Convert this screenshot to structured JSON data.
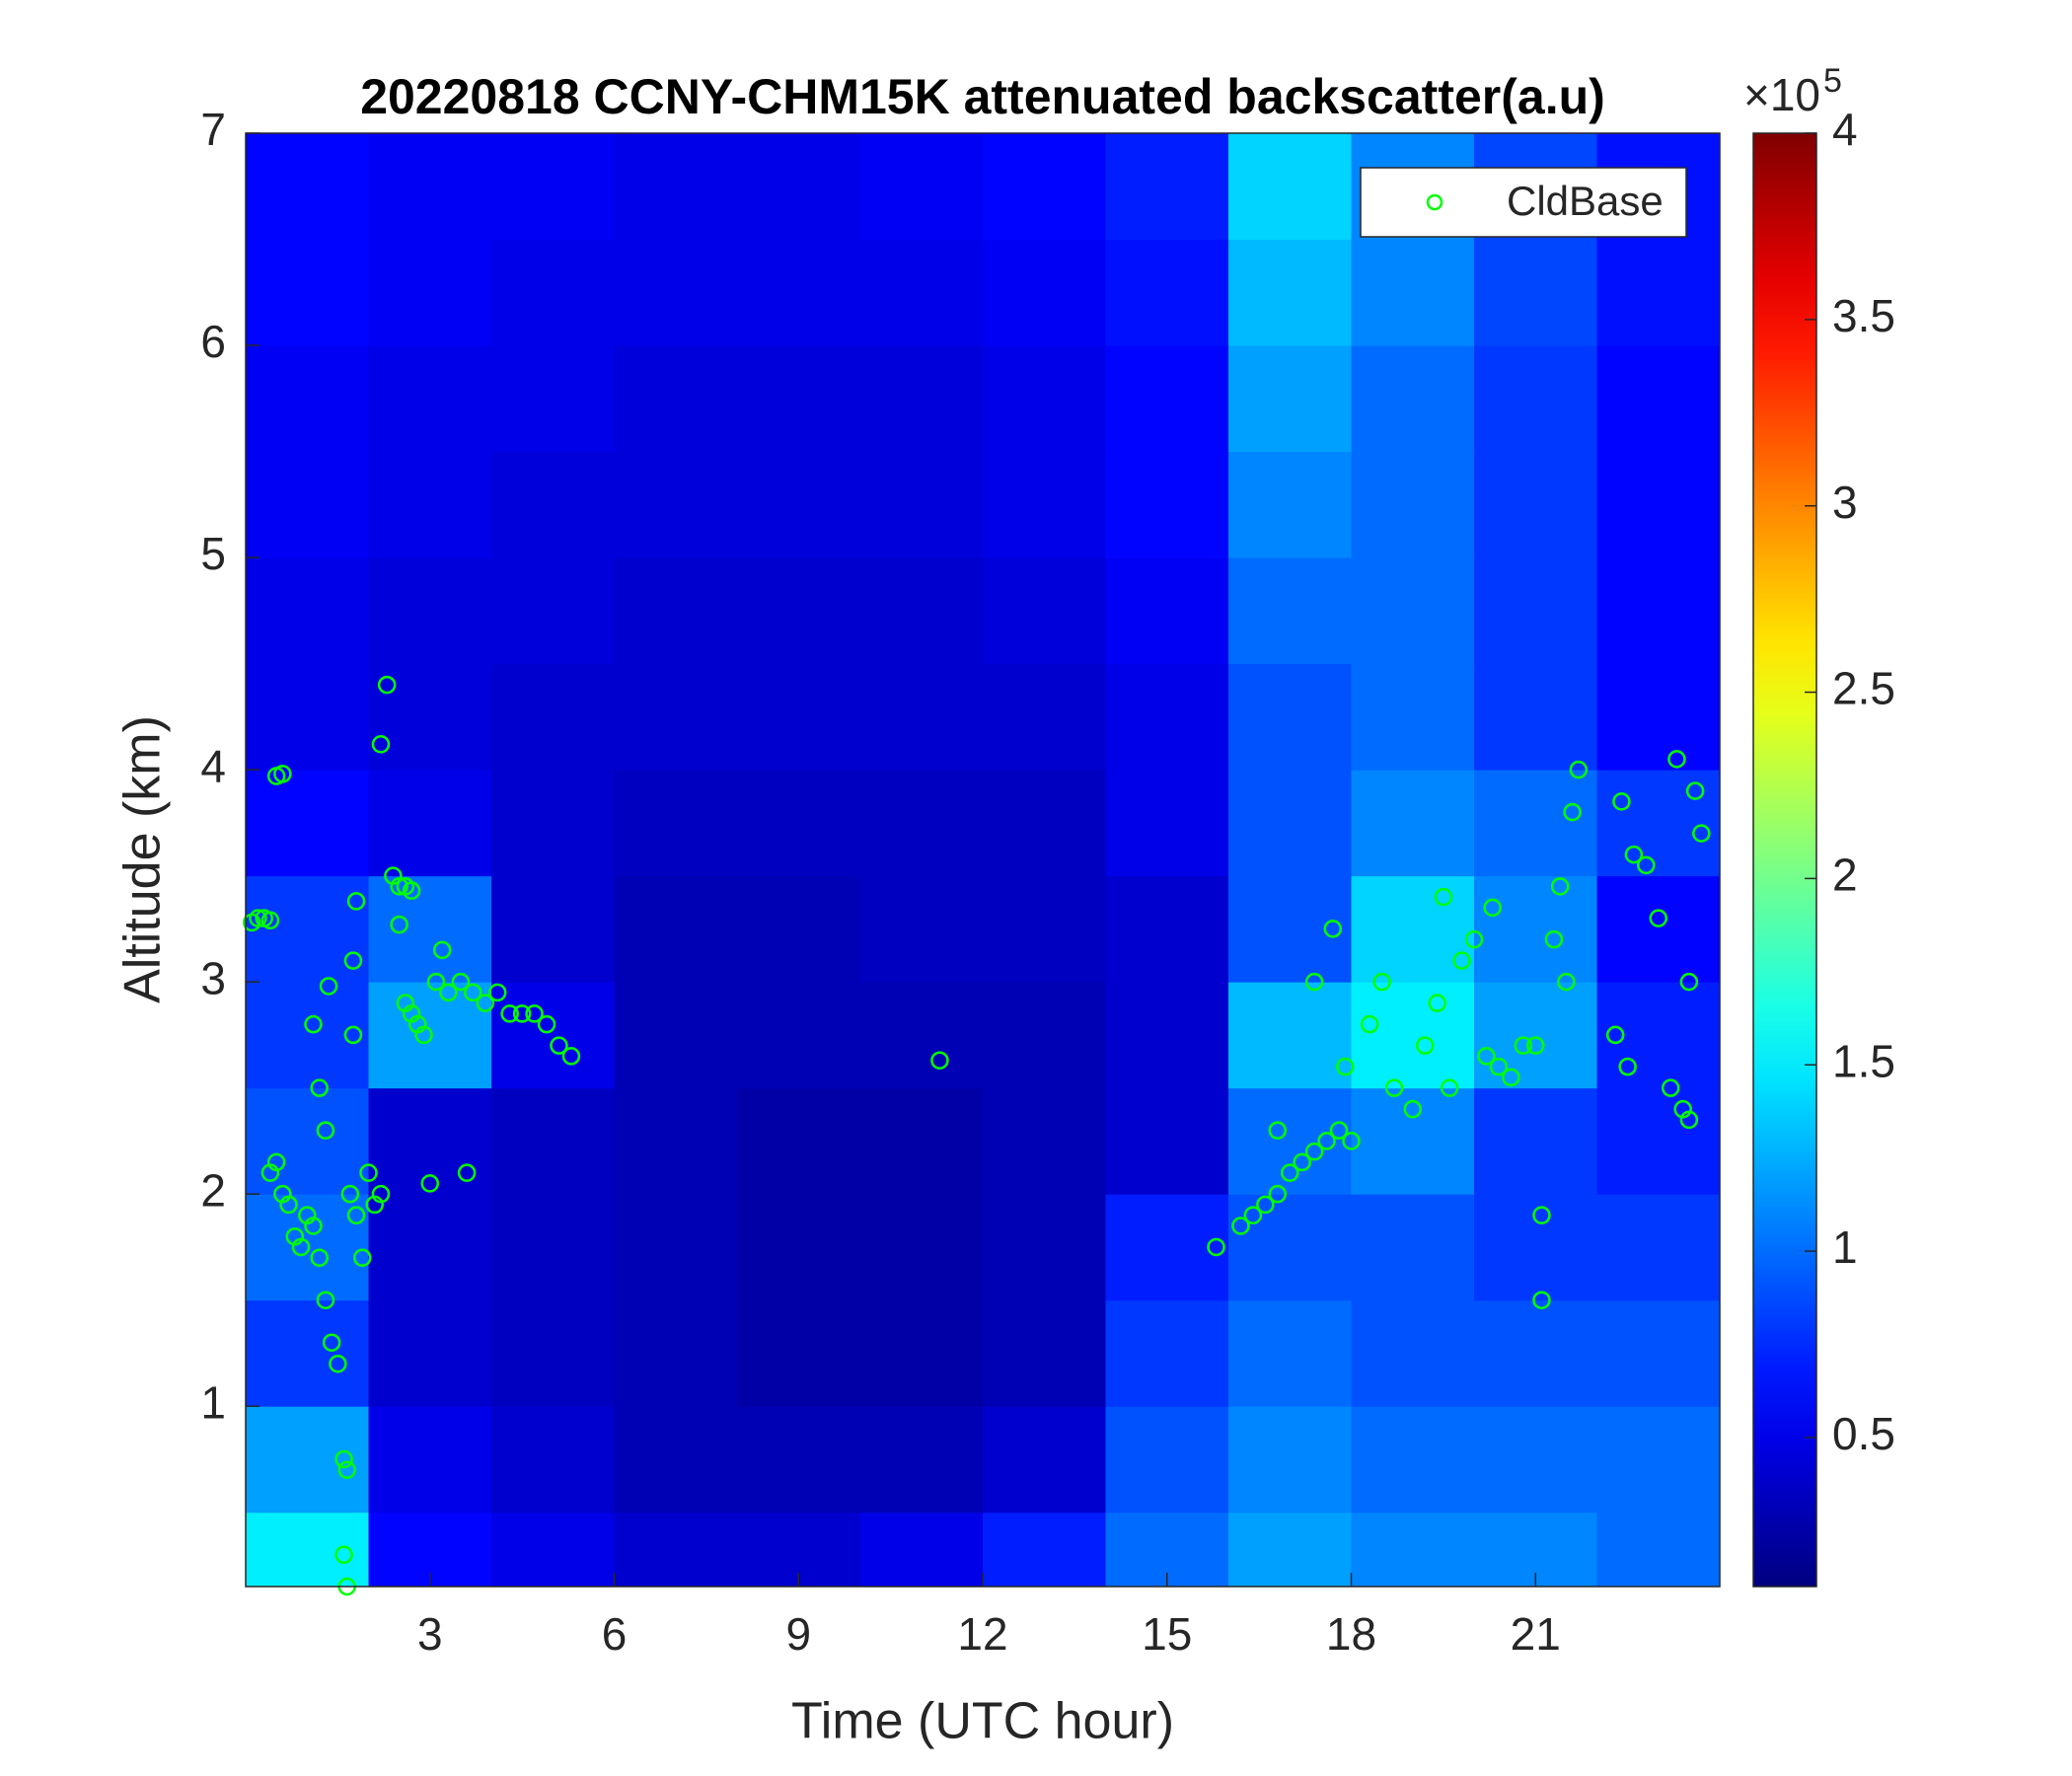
{
  "chart_data": {
    "type": "heatmap",
    "title": "20220818 CCNY-CHM15K attenuated backscatter(a.u)",
    "xlabel": "Time (UTC hour)",
    "ylabel": "Altitude (km)",
    "colormap": "jet",
    "xlim": [
      0,
      24
    ],
    "ylim": [
      0.15,
      7
    ],
    "xticks": [
      3,
      6,
      9,
      12,
      15,
      18,
      21
    ],
    "yticks": [
      1,
      2,
      3,
      4,
      5,
      6,
      7
    ],
    "clim": [
      10000,
      400000
    ],
    "cticks": [
      {
        "value": 50000,
        "label": "0.5"
      },
      {
        "value": 100000,
        "label": "1"
      },
      {
        "value": 150000,
        "label": "1.5"
      },
      {
        "value": 200000,
        "label": "2"
      },
      {
        "value": 250000,
        "label": "2.5"
      },
      {
        "value": 300000,
        "label": "3"
      },
      {
        "value": 350000,
        "label": "3.5"
      },
      {
        "value": 400000,
        "label": "4"
      }
    ],
    "colorbar_exponent": {
      "base": "×10",
      "power": "5"
    },
    "legend": "northeast",
    "xbins": [
      0,
      2,
      4,
      6,
      8,
      10,
      12,
      14,
      16,
      18,
      20,
      22,
      24
    ],
    "ybins": [
      0.15,
      0.5,
      1,
      1.5,
      2,
      2.5,
      3,
      3.5,
      4,
      4.5,
      5,
      5.5,
      6,
      6.5,
      7
    ],
    "z": [
      [
        150000,
        60000,
        50000,
        40000,
        40000,
        50000,
        70000,
        100000,
        120000,
        110000,
        110000,
        100000
      ],
      [
        120000,
        50000,
        40000,
        30000,
        30000,
        30000,
        40000,
        90000,
        110000,
        100000,
        100000,
        100000
      ],
      [
        80000,
        40000,
        35000,
        30000,
        25000,
        25000,
        30000,
        80000,
        100000,
        90000,
        90000,
        90000
      ],
      [
        100000,
        40000,
        35000,
        30000,
        25000,
        25000,
        30000,
        70000,
        90000,
        90000,
        80000,
        80000
      ],
      [
        90000,
        40000,
        35000,
        30000,
        25000,
        25000,
        30000,
        40000,
        100000,
        110000,
        80000,
        70000
      ],
      [
        80000,
        120000,
        50000,
        30000,
        30000,
        30000,
        30000,
        40000,
        130000,
        150000,
        120000,
        70000
      ],
      [
        80000,
        100000,
        40000,
        30000,
        30000,
        35000,
        35000,
        40000,
        90000,
        140000,
        110000,
        60000
      ],
      [
        60000,
        50000,
        40000,
        35000,
        35000,
        35000,
        35000,
        50000,
        90000,
        110000,
        100000,
        80000
      ],
      [
        50000,
        45000,
        40000,
        40000,
        40000,
        40000,
        40000,
        50000,
        90000,
        100000,
        80000,
        60000
      ],
      [
        50000,
        45000,
        45000,
        40000,
        40000,
        40000,
        45000,
        55000,
        100000,
        100000,
        80000,
        60000
      ],
      [
        55000,
        50000,
        45000,
        45000,
        45000,
        45000,
        50000,
        60000,
        110000,
        100000,
        80000,
        60000
      ],
      [
        55000,
        50000,
        50000,
        45000,
        45000,
        45000,
        50000,
        60000,
        120000,
        100000,
        80000,
        60000
      ],
      [
        60000,
        55000,
        50000,
        50000,
        50000,
        50000,
        55000,
        65000,
        130000,
        110000,
        85000,
        65000
      ],
      [
        60000,
        55000,
        55000,
        50000,
        50000,
        55000,
        60000,
        70000,
        140000,
        110000,
        85000,
        65000
      ]
    ],
    "series": [
      {
        "name": "CldBase",
        "color": "#00ff00",
        "x": [
          0.1,
          0.2,
          0.3,
          0.4,
          0.5,
          0.6,
          0.4,
          0.5,
          0.6,
          0.7,
          0.8,
          0.9,
          1.0,
          1.1,
          1.2,
          1.3,
          1.4,
          1.5,
          1.6,
          1.65,
          1.1,
          1.2,
          1.3,
          1.35,
          1.6,
          1.65,
          1.7,
          1.8,
          1.9,
          2.0,
          2.1,
          2.2,
          1.75,
          1.8,
          1.75,
          2.2,
          2.3,
          2.4,
          2.5,
          2.6,
          2.7,
          2.5,
          2.6,
          2.7,
          2.8,
          2.9,
          3.0,
          3.1,
          3.3,
          3.5,
          3.7,
          3.9,
          4.1,
          4.3,
          4.5,
          4.7,
          4.9,
          5.1,
          5.3,
          3.2,
          3.6,
          11.3,
          15.8,
          16.2,
          16.4,
          16.6,
          16.8,
          17.0,
          17.2,
          17.4,
          17.6,
          17.8,
          18.0,
          17.4,
          17.7,
          16.8,
          17.9,
          18.3,
          18.5,
          18.7,
          19.0,
          19.2,
          19.4,
          19.6,
          19.8,
          20.0,
          20.2,
          20.4,
          20.6,
          20.8,
          21.0,
          19.5,
          20.3,
          21.1,
          21.1,
          21.3,
          21.4,
          21.6,
          21.7,
          21.5,
          22.4,
          22.6,
          22.8,
          23.0,
          22.3,
          22.5,
          23.2,
          23.4,
          23.5,
          23.3,
          23.6,
          23.7,
          23.5
        ],
        "y": [
          3.28,
          3.3,
          3.3,
          3.29,
          3.97,
          3.98,
          2.1,
          2.15,
          2.0,
          1.95,
          1.8,
          1.75,
          1.9,
          1.85,
          1.7,
          1.5,
          1.3,
          1.2,
          0.75,
          0.7,
          2.8,
          2.5,
          2.3,
          2.98,
          0.3,
          0.15,
          2.0,
          1.9,
          1.7,
          2.1,
          1.95,
          2.0,
          2.75,
          3.38,
          3.1,
          4.12,
          4.4,
          3.5,
          3.45,
          3.45,
          3.43,
          3.27,
          2.9,
          2.85,
          2.8,
          2.75,
          2.05,
          3.0,
          2.95,
          3.0,
          2.95,
          2.9,
          2.95,
          2.85,
          2.85,
          2.85,
          2.8,
          2.7,
          2.65,
          3.15,
          2.1,
          2.63,
          1.75,
          1.85,
          1.9,
          1.95,
          2.0,
          2.1,
          2.15,
          2.2,
          2.25,
          2.3,
          2.25,
          3.0,
          3.25,
          2.3,
          2.6,
          2.8,
          3.0,
          2.5,
          2.4,
          2.7,
          2.9,
          2.5,
          3.1,
          3.2,
          2.65,
          2.6,
          2.55,
          2.7,
          2.7,
          3.4,
          3.35,
          1.9,
          1.5,
          3.2,
          3.45,
          3.8,
          4.0,
          3.0,
          3.85,
          3.6,
          3.55,
          3.3,
          2.75,
          2.6,
          2.5,
          2.4,
          2.35,
          4.05,
          3.9,
          3.7,
          3.0
        ]
      }
    ]
  }
}
